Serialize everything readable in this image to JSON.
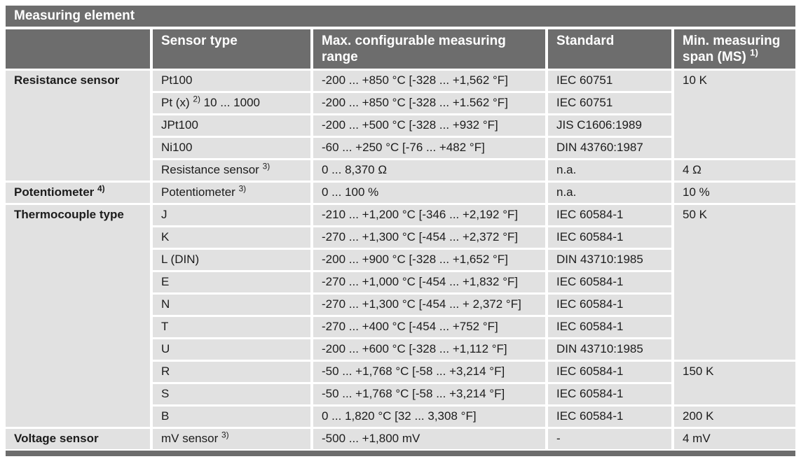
{
  "title": "Measuring element",
  "colors": {
    "header_bg": "#6d6d6d",
    "cell_bg": "#e1e1e1",
    "header_text": "#ffffff",
    "body_text": "#1c1c1c"
  },
  "header": {
    "sensor_type": "Sensor type",
    "range": "Max. configurable measuring range",
    "standard": "Standard",
    "min_span": "Min. measuring span (MS) ",
    "min_span_sup": "1)"
  },
  "rows": [
    {
      "group": "Resistance sensor",
      "group_rowspan": 5,
      "sensor": "Pt100",
      "range": "-200 ... +850 °C [-328 ... +1,562 °F]",
      "standard": "IEC 60751",
      "span": "10 K",
      "span_rowspan": 4
    },
    {
      "sensor": "Pt (x) ",
      "sensor_sup": "2)",
      "sensor_after": " 10 ... 1000",
      "range": "-200 ... +850 °C [-328 ... +1.562 °F]",
      "standard": "IEC 60751"
    },
    {
      "sensor": "JPt100",
      "range": "-200 ... +500 °C [-328 ... +932 °F]",
      "standard": "JIS C1606:1989"
    },
    {
      "sensor": "Ni100",
      "range": "-60 ... +250 °C [-76 ... +482 °F]",
      "standard": "DIN 43760:1987"
    },
    {
      "sensor": "Resistance sensor ",
      "sensor_sup": "3)",
      "range": "0 ... 8,370 Ω",
      "standard": "n.a.",
      "span": "4 Ω",
      "span_rowspan": 1
    },
    {
      "group": "Potentiometer ",
      "group_sup": "4)",
      "group_rowspan": 1,
      "sensor": "Potentiometer ",
      "sensor_sup": "3)",
      "range": "0 ... 100 %",
      "standard": "n.a.",
      "span": "10 %",
      "span_rowspan": 1
    },
    {
      "group": "Thermocouple type",
      "group_rowspan": 10,
      "sensor": "J",
      "range": "-210 ... +1,200 °C [-346 ... +2,192 °F]",
      "standard": "IEC 60584-1",
      "span": "50 K",
      "span_rowspan": 7
    },
    {
      "sensor": "K",
      "range": "-270 ... +1,300 °C [-454 ... +2,372 °F]",
      "standard": "IEC 60584-1"
    },
    {
      "sensor": "L (DIN)",
      "range": "-200 ... +900 °C [-328 ... +1,652 °F]",
      "standard": "DIN 43710:1985"
    },
    {
      "sensor": "E",
      "range": "-270 ... +1,000 °C [-454 ... +1,832 °F]",
      "standard": "IEC 60584-1"
    },
    {
      "sensor": "N",
      "range": "-270 ... +1,300 °C [-454 ... + 2,372 °F]",
      "standard": "IEC 60584-1"
    },
    {
      "sensor": "T",
      "range": "-270 ... +400 °C [-454 ... +752 °F]",
      "standard": "IEC 60584-1"
    },
    {
      "sensor": "U",
      "range": "-200 ... +600 °C [-328 ... +1,112 °F]",
      "standard": "DIN 43710:1985"
    },
    {
      "sensor": "R",
      "range": "-50 ... +1,768 °C [-58 ... +3,214 °F]",
      "standard": "IEC 60584-1",
      "span": "150 K",
      "span_rowspan": 2
    },
    {
      "sensor": "S",
      "range": "-50 ... +1,768 °C [-58 ... +3,214 °F]",
      "standard": "IEC 60584-1"
    },
    {
      "sensor": "B",
      "range": "0 ... 1,820 °C [32 ... 3,308 °F]",
      "standard": "IEC 60584-1",
      "span": "200 K",
      "span_rowspan": 1
    },
    {
      "group": "Voltage sensor",
      "group_rowspan": 1,
      "sensor": "mV sensor ",
      "sensor_sup": "3)",
      "range": "-500 ... +1,800 mV",
      "standard": "-",
      "span": "4 mV",
      "span_rowspan": 1
    }
  ]
}
